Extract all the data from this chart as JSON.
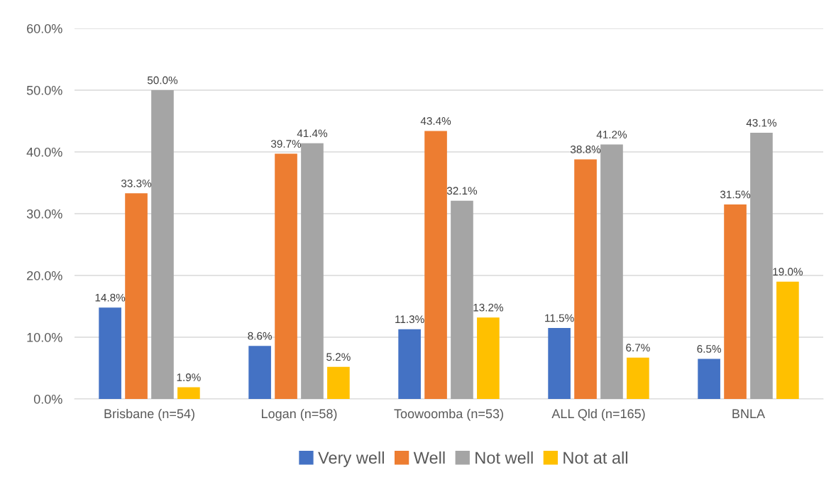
{
  "chart_data": {
    "type": "bar",
    "categories": [
      "Brisbane (n=54)",
      "Logan (n=58)",
      "Toowoomba (n=53)",
      "ALL Qld (n=165)",
      "BNLA"
    ],
    "series": [
      {
        "name": "Very well",
        "color": "#4472c4",
        "values": [
          14.8,
          8.6,
          11.3,
          11.5,
          6.5
        ],
        "value_labels": [
          "14.8%",
          "8.6%",
          "11.3%",
          "11.5%",
          "6.5%"
        ]
      },
      {
        "name": "Well",
        "color": "#ed7d31",
        "values": [
          33.3,
          39.7,
          43.4,
          38.8,
          31.5
        ],
        "value_labels": [
          "33.3%",
          "39.7%",
          "43.4%",
          "38.8%",
          "31.5%"
        ]
      },
      {
        "name": "Not well",
        "color": "#a5a5a5",
        "values": [
          50.0,
          41.4,
          32.1,
          41.2,
          43.1
        ],
        "value_labels": [
          "50.0%",
          "41.4%",
          "32.1%",
          "41.2%",
          "43.1%"
        ]
      },
      {
        "name": "Not at all",
        "color": "#ffc000",
        "values": [
          1.9,
          5.2,
          13.2,
          6.7,
          19.0
        ],
        "value_labels": [
          "1.9%",
          "5.2%",
          "13.2%",
          "6.7%",
          "19.0%"
        ]
      }
    ],
    "ylim": [
      0,
      60
    ],
    "yticks": [
      {
        "value": 0,
        "label": "0.0%"
      },
      {
        "value": 10,
        "label": "10.0%"
      },
      {
        "value": 20,
        "label": "20.0%"
      },
      {
        "value": 30,
        "label": "30.0%"
      },
      {
        "value": 40,
        "label": "40.0%"
      },
      {
        "value": 50,
        "label": "50.0%"
      },
      {
        "value": 60,
        "label": "60.0%"
      }
    ],
    "grid": "y",
    "legend": "bottom"
  }
}
